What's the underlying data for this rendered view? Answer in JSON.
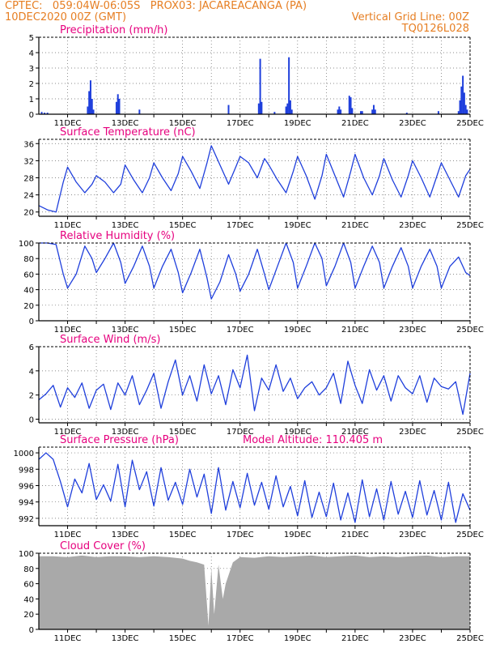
{
  "header": {
    "line1": "CPTEC:   059:04W-06:05S   PROX03: JACAREACANGA (PA)",
    "line2_left": "10DEC2020 00Z (GMT)",
    "line2_right": "Vertical Grid Line: 00Z",
    "line3_right": "TQ0126L028"
  },
  "colors": {
    "header": "#e67e22",
    "title": "#e6007e",
    "series": "#1f3fdc",
    "cloud": "#a9a9a9"
  },
  "chart_data": [
    {
      "type": "bar",
      "title": "Precipitation (mm/h)",
      "xlabel": "",
      "ylabel": "",
      "x_tick_labels": [
        "11DEC",
        "13DEC",
        "15DEC",
        "17DEC",
        "19DEC",
        "21DEC",
        "23DEC",
        "25DEC"
      ],
      "x_range_days": [
        "10DEC2020 00Z",
        "25DEC2020 00Z"
      ],
      "ylim": [
        0,
        5
      ],
      "y_ticks": [
        0,
        1,
        2,
        3,
        4,
        5
      ],
      "series": [
        {
          "x_day": [
            10.1,
            10.2,
            10.3,
            11.7,
            11.75,
            11.8,
            11.85,
            11.9,
            12.7,
            12.75,
            12.8,
            13.5,
            16.6,
            17.65,
            17.7,
            17.75,
            18.2,
            18.6,
            18.65,
            18.7,
            18.75,
            18.8,
            20.4,
            20.45,
            20.5,
            20.8,
            20.85,
            20.9,
            21.2,
            21.25,
            21.6,
            21.65,
            21.7,
            22.8,
            23.9,
            24.6,
            24.65,
            24.7,
            24.75,
            24.8,
            24.85,
            24.9
          ],
          "values": [
            0.15,
            0.1,
            0.1,
            0.5,
            1.5,
            2.2,
            1.0,
            0.3,
            0.8,
            1.3,
            1.0,
            0.3,
            0.6,
            0.7,
            3.6,
            0.8,
            0.15,
            0.5,
            0.7,
            3.7,
            0.9,
            0.3,
            0.3,
            0.5,
            0.3,
            1.2,
            1.1,
            0.4,
            0.2,
            0.2,
            0.3,
            0.6,
            0.3,
            0.1,
            0.2,
            0.2,
            0.9,
            1.8,
            2.5,
            1.4,
            0.6,
            0.3
          ]
        }
      ]
    },
    {
      "type": "line",
      "title": "Surface Temperature (nC)",
      "ylim": [
        19,
        37
      ],
      "y_ticks": [
        20,
        24,
        28,
        32,
        36
      ],
      "x_tick_labels": [
        "11DEC",
        "13DEC",
        "15DEC",
        "17DEC",
        "19DEC",
        "21DEC",
        "23DEC",
        "25DEC"
      ],
      "series": [
        {
          "x_day": [
            10.0,
            10.3,
            10.6,
            10.85,
            11.0,
            11.3,
            11.6,
            11.85,
            12.0,
            12.3,
            12.6,
            12.85,
            13.0,
            13.3,
            13.6,
            13.85,
            14.0,
            14.3,
            14.6,
            14.85,
            15.0,
            15.3,
            15.6,
            15.85,
            16.0,
            16.3,
            16.6,
            16.85,
            17.0,
            17.3,
            17.6,
            17.85,
            18.0,
            18.3,
            18.6,
            18.85,
            19.0,
            19.3,
            19.6,
            19.85,
            20.0,
            20.3,
            20.6,
            20.85,
            21.0,
            21.3,
            21.6,
            21.85,
            22.0,
            22.3,
            22.6,
            22.85,
            23.0,
            23.3,
            23.6,
            23.85,
            24.0,
            24.3,
            24.6,
            24.85,
            25.0
          ],
          "values": [
            21.5,
            20.5,
            20.0,
            27.0,
            30.5,
            27.0,
            24.5,
            26.5,
            28.5,
            27.0,
            24.5,
            26.5,
            31.0,
            27.5,
            24.5,
            28.0,
            31.5,
            28.0,
            25.0,
            29.0,
            33.0,
            29.5,
            25.5,
            31.5,
            35.5,
            31.0,
            26.5,
            30.5,
            33.0,
            31.5,
            28.0,
            32.5,
            31.0,
            27.5,
            24.5,
            29.5,
            33.0,
            28.5,
            23.0,
            28.5,
            33.5,
            28.5,
            23.5,
            29.5,
            33.5,
            28.0,
            24.0,
            28.5,
            32.5,
            27.5,
            23.5,
            28.5,
            32.0,
            28.0,
            23.5,
            28.5,
            31.5,
            27.5,
            23.5,
            28.5,
            30.0
          ]
        }
      ]
    },
    {
      "type": "line",
      "title": "Relative Humidity (%)",
      "ylim": [
        0,
        100
      ],
      "y_ticks": [
        0,
        20,
        40,
        60,
        80,
        100
      ],
      "x_tick_labels": [
        "11DEC",
        "13DEC",
        "15DEC",
        "17DEC",
        "19DEC",
        "21DEC",
        "23DEC",
        "25DEC"
      ],
      "series": [
        {
          "x_day": [
            10.0,
            10.3,
            10.6,
            10.85,
            11.0,
            11.3,
            11.6,
            11.85,
            12.0,
            12.3,
            12.6,
            12.85,
            13.0,
            13.3,
            13.6,
            13.85,
            14.0,
            14.3,
            14.6,
            14.85,
            15.0,
            15.3,
            15.6,
            15.85,
            16.0,
            16.3,
            16.6,
            16.85,
            17.0,
            17.3,
            17.6,
            17.85,
            18.0,
            18.3,
            18.6,
            18.85,
            19.0,
            19.3,
            19.6,
            19.85,
            20.0,
            20.3,
            20.6,
            20.85,
            21.0,
            21.3,
            21.6,
            21.85,
            22.0,
            22.3,
            22.6,
            22.85,
            23.0,
            23.3,
            23.6,
            23.85,
            24.0,
            24.3,
            24.6,
            24.85,
            25.0
          ],
          "values": [
            100,
            100,
            98,
            60,
            42,
            60,
            96,
            80,
            62,
            80,
            100,
            75,
            48,
            70,
            96,
            70,
            42,
            70,
            92,
            62,
            36,
            62,
            92,
            55,
            28,
            50,
            85,
            60,
            38,
            60,
            92,
            60,
            40,
            70,
            100,
            75,
            42,
            70,
            100,
            80,
            45,
            70,
            100,
            75,
            42,
            70,
            96,
            75,
            42,
            70,
            94,
            70,
            42,
            70,
            92,
            70,
            42,
            70,
            82,
            62,
            58
          ]
        }
      ]
    },
    {
      "type": "line",
      "title": "Surface Wind (m/s)",
      "ylim": [
        -0.3,
        6
      ],
      "y_ticks": [
        0,
        2,
        4,
        6
      ],
      "x_tick_labels": [
        "11DEC",
        "13DEC",
        "15DEC",
        "17DEC",
        "19DEC",
        "21DEC",
        "23DEC",
        "25DEC"
      ],
      "series": [
        {
          "x_day": [
            10.0,
            10.25,
            10.5,
            10.75,
            11.0,
            11.25,
            11.5,
            11.75,
            12.0,
            12.25,
            12.5,
            12.75,
            13.0,
            13.25,
            13.5,
            13.75,
            14.0,
            14.25,
            14.5,
            14.75,
            15.0,
            15.25,
            15.5,
            15.75,
            16.0,
            16.25,
            16.5,
            16.75,
            17.0,
            17.25,
            17.5,
            17.75,
            18.0,
            18.25,
            18.5,
            18.75,
            19.0,
            19.25,
            19.5,
            19.75,
            20.0,
            20.25,
            20.5,
            20.75,
            21.0,
            21.25,
            21.5,
            21.75,
            22.0,
            22.25,
            22.5,
            22.75,
            23.0,
            23.25,
            23.5,
            23.75,
            24.0,
            24.25,
            24.5,
            24.75,
            25.0
          ],
          "values": [
            1.6,
            2.1,
            2.8,
            1.0,
            2.6,
            1.8,
            3.0,
            0.9,
            2.4,
            2.9,
            0.8,
            3.0,
            2.0,
            3.6,
            1.2,
            2.4,
            3.8,
            0.9,
            3.1,
            4.9,
            2.0,
            3.6,
            1.5,
            4.5,
            2.1,
            3.6,
            1.2,
            4.1,
            2.6,
            5.3,
            0.7,
            3.4,
            2.4,
            4.5,
            2.3,
            3.4,
            1.7,
            2.6,
            3.1,
            2.0,
            2.6,
            3.8,
            1.3,
            4.8,
            2.8,
            1.3,
            4.1,
            2.4,
            3.6,
            1.5,
            3.6,
            2.6,
            2.1,
            3.6,
            1.4,
            3.4,
            2.7,
            2.5,
            3.1,
            0.4,
            3.8
          ]
        }
      ]
    },
    {
      "type": "line",
      "title": "Surface Pressure (hPa)",
      "annotation": "Model Altitude: 110.405 m",
      "ylim": [
        991.1,
        1000.7
      ],
      "y_ticks": [
        992,
        994,
        996,
        998,
        1000
      ],
      "x_tick_labels": [
        "11DEC",
        "13DEC",
        "15DEC",
        "17DEC",
        "19DEC",
        "21DEC",
        "23DEC",
        "25DEC"
      ],
      "series": [
        {
          "x_day": [
            10.0,
            10.25,
            10.5,
            10.75,
            11.0,
            11.25,
            11.5,
            11.75,
            12.0,
            12.25,
            12.5,
            12.75,
            13.0,
            13.25,
            13.5,
            13.75,
            14.0,
            14.25,
            14.5,
            14.75,
            15.0,
            15.25,
            15.5,
            15.75,
            16.0,
            16.25,
            16.5,
            16.75,
            17.0,
            17.25,
            17.5,
            17.75,
            18.0,
            18.25,
            18.5,
            18.75,
            19.0,
            19.25,
            19.5,
            19.75,
            20.0,
            20.25,
            20.5,
            20.75,
            21.0,
            21.25,
            21.5,
            21.75,
            22.0,
            22.25,
            22.5,
            22.75,
            23.0,
            23.25,
            23.5,
            23.75,
            24.0,
            24.25,
            24.5,
            24.75,
            25.0
          ],
          "values": [
            999.2,
            1000.0,
            999.2,
            996.5,
            993.4,
            996.8,
            995.1,
            998.7,
            994.3,
            996.1,
            994.1,
            998.6,
            993.4,
            999.1,
            995.5,
            997.7,
            993.5,
            998.2,
            994.2,
            996.4,
            993.7,
            998.0,
            994.6,
            997.4,
            992.6,
            998.2,
            993.0,
            996.5,
            993.3,
            997.5,
            993.6,
            996.4,
            993.1,
            997.2,
            993.4,
            995.9,
            992.3,
            996.6,
            992.1,
            995.2,
            992.2,
            996.3,
            991.8,
            995.1,
            991.5,
            996.7,
            992.2,
            995.6,
            991.8,
            996.5,
            992.5,
            995.3,
            992.1,
            996.6,
            992.4,
            995.4,
            991.8,
            996.4,
            991.5,
            995.0,
            993.0
          ]
        }
      ]
    },
    {
      "type": "area",
      "title": "Cloud Cover (%)",
      "ylim": [
        0,
        100
      ],
      "y_ticks": [
        0,
        20,
        40,
        60,
        80,
        100
      ],
      "x_tick_labels": [
        "11DEC",
        "13DEC",
        "15DEC",
        "17DEC",
        "19DEC",
        "21DEC",
        "23DEC",
        "25DEC"
      ],
      "series": [
        {
          "x_day": [
            10.0,
            10.5,
            11.0,
            11.5,
            12.0,
            12.5,
            13.0,
            13.5,
            14.0,
            14.5,
            15.0,
            15.25,
            15.5,
            15.75,
            15.9,
            16.0,
            16.1,
            16.25,
            16.4,
            16.5,
            16.75,
            17.0,
            17.5,
            18.0,
            18.5,
            19.0,
            19.5,
            20.0,
            20.5,
            21.0,
            21.5,
            22.0,
            22.5,
            23.0,
            23.5,
            24.0,
            24.5,
            25.0
          ],
          "values": [
            96,
            96,
            95,
            97,
            95,
            96,
            96,
            95,
            96,
            95,
            93,
            90,
            88,
            85,
            5,
            80,
            20,
            85,
            40,
            60,
            88,
            95,
            94,
            96,
            95,
            96,
            97,
            95,
            96,
            97,
            95,
            96,
            95,
            96,
            97,
            95,
            96,
            96
          ]
        }
      ]
    }
  ]
}
